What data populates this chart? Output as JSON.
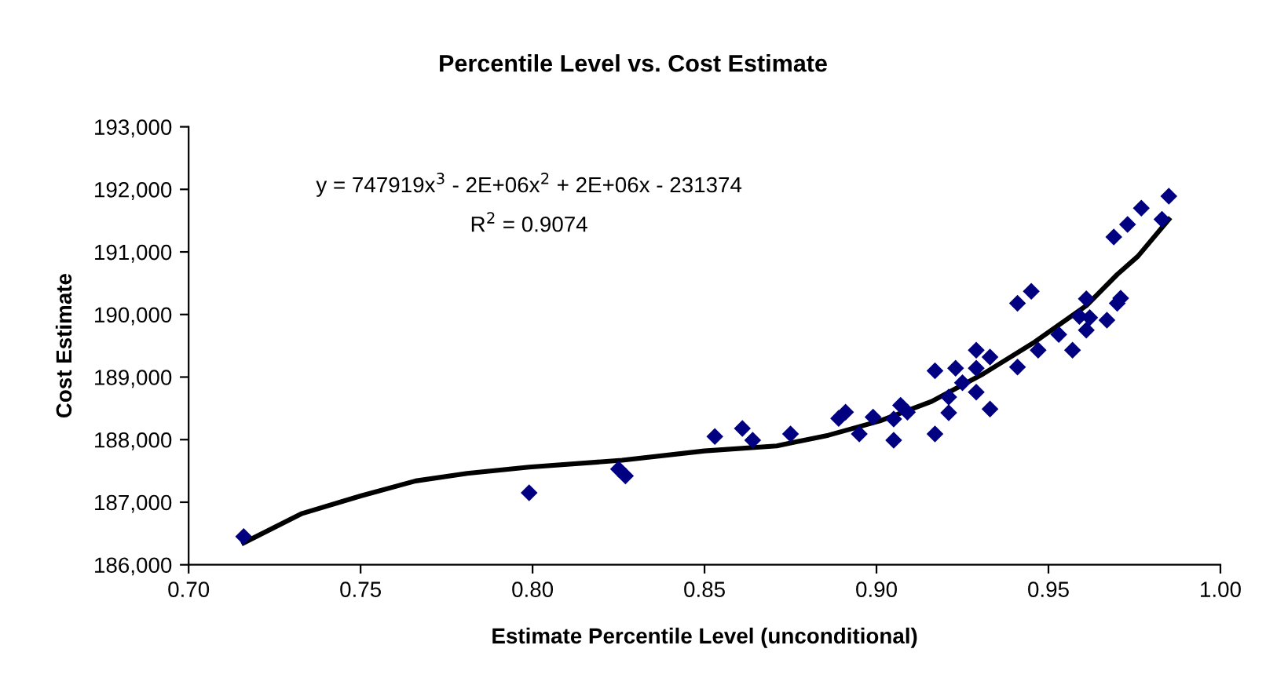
{
  "chart_data": {
    "type": "scatter",
    "title": "Percentile Level vs. Cost Estimate",
    "xlabel": "Estimate Percentile Level (unconditional)",
    "ylabel": "Cost Estimate",
    "annotations": [
      "y = 747919x$^{3}$ - 2E+06x$^{2}$ + 2E+06x - 231374",
      "R$^{2}$ = 0.9074"
    ],
    "xlim": [
      0.7,
      1.0
    ],
    "xticks": [
      {
        "value": 0.7,
        "label": "0.70"
      },
      {
        "value": 0.75,
        "label": "0.75"
      },
      {
        "value": 0.8,
        "label": "0.80"
      },
      {
        "value": 0.85,
        "label": "0.85"
      },
      {
        "value": 0.9,
        "label": "0.90"
      },
      {
        "value": 0.95,
        "label": "0.95"
      },
      {
        "value": 1.0,
        "label": "1.00"
      }
    ],
    "ylim": [
      186000,
      193000
    ],
    "yticks": [
      {
        "value": 186000,
        "label": "186,000"
      },
      {
        "value": 187000,
        "label": "187,000"
      },
      {
        "value": 188000,
        "label": "188,000"
      },
      {
        "value": 189000,
        "label": "189,000"
      },
      {
        "value": 190000,
        "label": "190,000"
      },
      {
        "value": 191000,
        "label": "191,000"
      },
      {
        "value": 192000,
        "label": "192,000"
      },
      {
        "value": 193000,
        "label": "193,000"
      }
    ],
    "grid": false,
    "legend": false,
    "marker": "diamond",
    "series": [
      {
        "color": "#000080",
        "x": [
          0.716,
          0.799,
          0.825,
          0.827,
          0.853,
          0.861,
          0.864,
          0.875,
          0.889,
          0.891,
          0.895,
          0.899,
          0.905,
          0.905,
          0.907,
          0.909,
          0.917,
          0.917,
          0.921,
          0.921,
          0.923,
          0.925,
          0.929,
          0.929,
          0.929,
          0.933,
          0.933,
          0.941,
          0.941,
          0.945,
          0.947,
          0.953,
          0.957,
          0.959,
          0.961,
          0.962,
          0.961,
          0.967,
          0.969,
          0.97,
          0.971,
          0.973,
          0.977,
          0.983,
          0.985
        ],
        "values": [
          186450,
          187150,
          187530,
          187420,
          188050,
          188180,
          187990,
          188090,
          188340,
          188440,
          188090,
          188360,
          187990,
          188330,
          188550,
          188440,
          189100,
          188090,
          188430,
          188680,
          189140,
          188910,
          189430,
          189140,
          188760,
          189320,
          188490,
          190180,
          189160,
          190370,
          189430,
          189680,
          189430,
          189970,
          190250,
          189950,
          189750,
          189910,
          191240,
          190180,
          190260,
          191440,
          191700,
          191520,
          191890
        ]
      },
      {
        "type": "line",
        "color": "#000000",
        "marker": "none",
        "line_style": "solid",
        "x": [
          0.716,
          0.733,
          0.75,
          0.766,
          0.781,
          0.799,
          0.826,
          0.85,
          0.871,
          0.886,
          0.901,
          0.916,
          0.931,
          0.946,
          0.961,
          0.97,
          0.976,
          0.985
        ],
        "values": [
          186350,
          186820,
          187100,
          187340,
          187460,
          187560,
          187670,
          187820,
          187900,
          188070,
          188300,
          188610,
          189050,
          189560,
          190140,
          190640,
          190930,
          191520
        ]
      }
    ]
  }
}
